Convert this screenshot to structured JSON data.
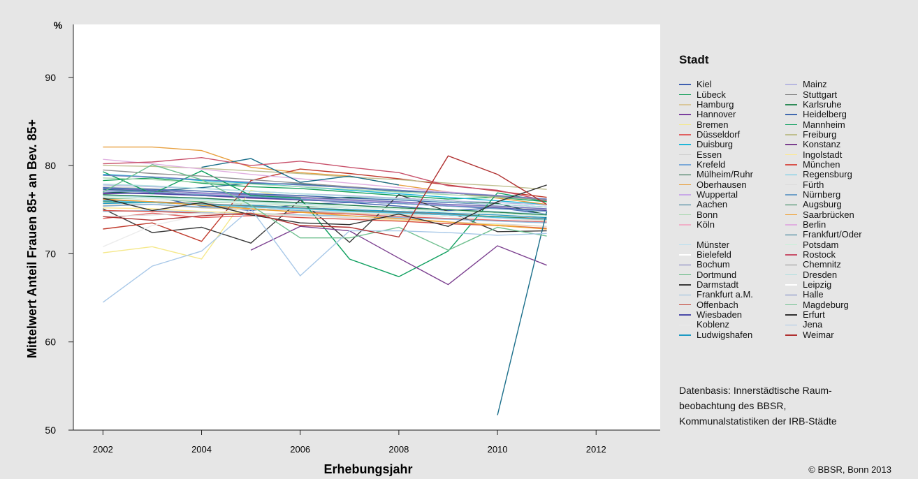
{
  "chart_data": {
    "type": "line",
    "title": "",
    "xlabel": "Erhebungsjahr",
    "ylabel": "Mittelwert Anteil Frauen 85+ an Bev. 85+",
    "y_unit": "%",
    "xlim": [
      2001.4,
      2013.3
    ],
    "ylim": [
      50,
      96
    ],
    "x_ticks": [
      2002,
      2004,
      2006,
      2008,
      2010,
      2012
    ],
    "y_ticks": [
      50,
      60,
      70,
      80,
      90
    ],
    "grid": false,
    "legend_title": "Stadt",
    "legend_position": "right",
    "x": [
      2002,
      2003,
      2004,
      2005,
      2006,
      2007,
      2008,
      2009,
      2010,
      2011
    ],
    "series": [
      {
        "name": "Kiel",
        "color": "#3f5fb0",
        "values": [
          76.2,
          76.5,
          75.4,
          74.9,
          75.6,
          75.8,
          75.4,
          74.9,
          75.2,
          74.5
        ]
      },
      {
        "name": "Lübeck",
        "color": "#16a05a",
        "values": [
          78.3,
          78.6,
          78.0,
          77.6,
          77.4,
          77.0,
          76.6,
          76.2,
          76.4,
          75.9
        ]
      },
      {
        "name": "Hamburg",
        "color": "#d9c79a",
        "values": [
          75.5,
          75.6,
          75.2,
          75.0,
          74.8,
          74.6,
          74.4,
          74.2,
          74.0,
          73.8
        ]
      },
      {
        "name": "Hannover",
        "color": "#7b3f9e",
        "values": [
          76.8,
          76.9,
          76.6,
          76.3,
          76.1,
          75.9,
          75.7,
          75.5,
          75.3,
          75.0
        ]
      },
      {
        "name": "Bremen",
        "color": "#f5e88a",
        "values": [
          70.1,
          70.8,
          69.4,
          77.2,
          76.2,
          76.0,
          75.8,
          75.5,
          75.2,
          74.9
        ]
      },
      {
        "name": "Düsseldorf",
        "color": "#e06060",
        "values": [
          74.0,
          74.6,
          74.1,
          74.3,
          74.7,
          74.5,
          74.2,
          74.0,
          73.8,
          73.6
        ]
      },
      {
        "name": "Duisburg",
        "color": "#1fb6d8",
        "values": [
          79.0,
          78.7,
          78.3,
          78.0,
          77.6,
          77.2,
          76.8,
          76.4,
          76.0,
          75.6
        ]
      },
      {
        "name": "Essen",
        "color": "#cfcfcf",
        "values": [
          77.6,
          77.4,
          77.1,
          76.8,
          76.5,
          76.2,
          75.9,
          75.6,
          75.3,
          75.0
        ]
      },
      {
        "name": "Krefeld",
        "color": "#7aa8d8",
        "values": [
          75.4,
          75.6,
          75.3,
          75.2,
          74.9,
          74.7,
          74.6,
          74.4,
          74.1,
          73.9
        ]
      },
      {
        "name": "Mülheim/Ruhr",
        "color": "#155d3a",
        "values": [
          76.9,
          77.1,
          76.7,
          76.5,
          76.2,
          76.4,
          76.3,
          76.0,
          75.7,
          74.4
        ]
      },
      {
        "name": "Oberhausen",
        "color": "#e8a040",
        "values": [
          82.1,
          82.1,
          81.7,
          79.8,
          79.2,
          78.8,
          77.8,
          77.0,
          76.3,
          75.6
        ]
      },
      {
        "name": "Wuppertal",
        "color": "#c9a9e8",
        "values": [
          77.2,
          77.0,
          76.8,
          76.6,
          76.3,
          76.0,
          75.8,
          75.5,
          75.2,
          74.9
        ]
      },
      {
        "name": "Aachen",
        "color": "#1f6e8c",
        "values": [
          77.3,
          77.1,
          77.5,
          78.0,
          77.9,
          77.5,
          77.1,
          76.9,
          76.5,
          76.2
        ]
      },
      {
        "name": "Bonn",
        "color": "#a8d8b0",
        "values": [
          78.6,
          78.4,
          78.1,
          77.9,
          77.6,
          77.3,
          77.0,
          76.7,
          76.4,
          76.1
        ]
      },
      {
        "name": "Köln",
        "color": "#f0b0c8",
        "values": [
          76.0,
          75.9,
          75.6,
          75.4,
          75.2,
          75.0,
          74.8,
          74.6,
          74.4,
          74.2
        ]
      },
      {
        "name": "Münster",
        "color": "#b8e0f0",
        "values": [
          76.6,
          76.4,
          76.2,
          75.9,
          75.7,
          75.5,
          75.2,
          75.0,
          74.8,
          74.5
        ]
      },
      {
        "name": "Bielefeld",
        "color": "#ffffff",
        "values": [
          75.8,
          75.7,
          75.5,
          75.3,
          75.0,
          74.8,
          74.6,
          74.4,
          74.2,
          73.9
        ]
      },
      {
        "name": "Bochum",
        "color": "#7070b8",
        "values": [
          77.4,
          77.2,
          76.9,
          76.7,
          76.4,
          76.1,
          75.9,
          75.6,
          75.4,
          75.1
        ]
      },
      {
        "name": "Dortmund",
        "color": "#60b880",
        "values": [
          76.3,
          76.2,
          75.9,
          75.7,
          75.4,
          75.2,
          75.0,
          74.7,
          74.5,
          74.2
        ]
      },
      {
        "name": "Darmstadt",
        "color": "#3a3a3a",
        "values": [
          75.1,
          72.4,
          73.0,
          71.2,
          76.1,
          71.3,
          76.7,
          74.8,
          72.5,
          72.6
        ]
      },
      {
        "name": "Frankfurt a.M.",
        "color": "#90bce0",
        "values": [
          74.8,
          74.9,
          74.7,
          74.6,
          74.4,
          74.3,
          74.1,
          73.9,
          73.7,
          73.5
        ]
      },
      {
        "name": "Offenbach",
        "color": "#c0392b",
        "values": [
          72.8,
          73.5,
          71.4,
          78.3,
          79.6,
          79.1,
          78.5,
          77.8,
          77.1,
          76.4
        ]
      },
      {
        "name": "Wiesbaden",
        "color": "#4a4aa8",
        "values": [
          76.9,
          76.8,
          76.6,
          76.4,
          76.1,
          75.9,
          75.7,
          75.4,
          75.2,
          74.9
        ]
      },
      {
        "name": "Koblenz",
        "color": "#ececec",
        "values": [
          70.8,
          73.2,
          74.4,
          75.2,
          75.0,
          74.7,
          74.5,
          74.2,
          74.0,
          73.7
        ]
      },
      {
        "name": "Ludwigshafen",
        "color": "#1d9ac4",
        "values": [
          75.7,
          75.8,
          75.6,
          75.5,
          75.2,
          75.0,
          74.8,
          74.6,
          74.4,
          74.1
        ]
      },
      {
        "name": "Mainz",
        "color": "#b8b8e0",
        "values": [
          77.8,
          77.6,
          77.4,
          77.1,
          76.8,
          76.6,
          76.3,
          76.0,
          75.8,
          75.5
        ]
      },
      {
        "name": "Stuttgart",
        "color": "#808080",
        "values": [
          76.1,
          75.9,
          75.7,
          75.4,
          75.2,
          74.9,
          74.7,
          74.5,
          74.2,
          74.0
        ]
      },
      {
        "name": "Karlsruhe",
        "color": "#2e8b57",
        "values": [
          75.9,
          75.8,
          75.6,
          75.3,
          75.1,
          74.9,
          74.6,
          74.4,
          74.2,
          73.9
        ]
      },
      {
        "name": "Heidelberg",
        "color": "#4169b0",
        "values": [
          77.5,
          77.3,
          77.1,
          76.8,
          76.6,
          76.3,
          76.1,
          75.8,
          75.6,
          75.3
        ]
      },
      {
        "name": "Mannheim",
        "color": "#10a060",
        "values": [
          79.3,
          76.8,
          79.4,
          76.6,
          76.3,
          69.4,
          67.4,
          70.3,
          76.9,
          75.9
        ]
      },
      {
        "name": "Freiburg",
        "color": "#bfbf8f",
        "values": [
          80.0,
          79.9,
          79.7,
          79.4,
          79.1,
          78.7,
          78.4,
          78.0,
          77.7,
          77.3
        ]
      },
      {
        "name": "Konstanz",
        "color": "#7b3f8f",
        "values": [
          null,
          null,
          null,
          70.4,
          73.1,
          72.6,
          69.5,
          66.5,
          70.9,
          68.7
        ]
      },
      {
        "name": "Ingolstadt",
        "color": "#fde890",
        "values": [
          75.2,
          75.1,
          74.8,
          74.6,
          74.3,
          74.1,
          73.8,
          73.6,
          73.3,
          73.1
        ]
      },
      {
        "name": "München",
        "color": "#d8524a",
        "values": [
          74.9,
          74.8,
          74.6,
          74.4,
          74.1,
          73.9,
          73.7,
          73.4,
          73.2,
          72.9
        ]
      },
      {
        "name": "Regensburg",
        "color": "#5ac8e8",
        "values": [
          76.0,
          75.8,
          75.6,
          75.3,
          75.1,
          74.8,
          74.6,
          74.4,
          74.1,
          73.9
        ]
      },
      {
        "name": "Fürth",
        "color": "#dcdcdc",
        "values": [
          74.2,
          74.4,
          74.6,
          74.5,
          74.3,
          74.1,
          73.9,
          73.6,
          73.4,
          73.1
        ]
      },
      {
        "name": "Nürnberg",
        "color": "#70a0c8",
        "values": [
          77.1,
          77.0,
          76.7,
          76.5,
          76.2,
          75.9,
          75.7,
          75.4,
          75.1,
          74.8
        ]
      },
      {
        "name": "Augsburg",
        "color": "#1f7a4a",
        "values": [
          76.7,
          76.5,
          76.3,
          76.0,
          75.8,
          75.5,
          75.2,
          75.0,
          74.7,
          74.4
        ]
      },
      {
        "name": "Saarbrücken",
        "color": "#f0a030",
        "values": [
          76.2,
          75.9,
          75.5,
          75.1,
          74.7,
          74.3,
          74.0,
          73.6,
          73.2,
          72.8
        ]
      },
      {
        "name": "Berlin",
        "color": "#e0b0e0",
        "values": [
          80.7,
          80.2,
          79.6,
          79.0,
          78.5,
          78.0,
          77.5,
          77.0,
          76.6,
          76.1
        ]
      },
      {
        "name": "Frankfurt/Oder",
        "color": "#1a6e8a",
        "values": [
          null,
          null,
          79.8,
          80.8,
          78.1,
          78.8,
          77.8,
          null,
          51.7,
          74.8
        ]
      },
      {
        "name": "Potsdam",
        "color": "#c8f0d8",
        "values": [
          76.5,
          76.3,
          76.1,
          75.8,
          75.6,
          75.3,
          75.1,
          74.8,
          74.6,
          74.3
        ]
      },
      {
        "name": "Rostock",
        "color": "#c8506a",
        "values": [
          80.2,
          80.4,
          80.9,
          80.0,
          80.5,
          79.8,
          79.2,
          77.7,
          77.2,
          76.0
        ]
      },
      {
        "name": "Chemnitz",
        "color": "#909090",
        "values": [
          79.5,
          79.1,
          78.8,
          78.4,
          78.0,
          77.6,
          77.2,
          76.9,
          76.5,
          76.1
        ]
      },
      {
        "name": "Dresden",
        "color": "#b0e0e0",
        "values": [
          77.9,
          77.7,
          77.4,
          77.1,
          76.8,
          76.5,
          76.2,
          75.9,
          75.6,
          75.3
        ]
      },
      {
        "name": "Leipzig",
        "color": "#ffffff",
        "values": [
          76.4,
          76.2,
          76.0,
          75.7,
          75.5,
          75.2,
          75.0,
          74.7,
          74.5,
          74.2
        ]
      },
      {
        "name": "Halle",
        "color": "#7080c0",
        "values": [
          78.9,
          78.7,
          78.4,
          78.1,
          77.8,
          77.5,
          77.2,
          76.9,
          76.6,
          76.2
        ]
      },
      {
        "name": "Magdeburg",
        "color": "#70c090",
        "values": [
          77.0,
          80.1,
          78.4,
          75.5,
          71.8,
          71.8,
          73.0,
          70.4,
          73.0,
          72.0
        ]
      },
      {
        "name": "Erfurt",
        "color": "#303030",
        "values": [
          76.3,
          74.9,
          75.8,
          74.4,
          73.5,
          73.3,
          74.5,
          73.1,
          75.9,
          77.8
        ]
      },
      {
        "name": "Jena",
        "color": "#a8c8e8",
        "values": [
          64.5,
          68.6,
          70.3,
          75.1,
          67.5,
          72.6,
          72.6,
          72.4,
          72.1,
          72.3
        ]
      },
      {
        "name": "Weimar",
        "color": "#b03030",
        "values": [
          74.2,
          73.8,
          74.3,
          74.6,
          73.2,
          73.0,
          71.9,
          81.1,
          79.0,
          75.6
        ]
      }
    ],
    "legend_columns": [
      [
        "Kiel",
        "Lübeck",
        "Hamburg",
        "Hannover",
        "Bremen",
        "Düsseldorf",
        "Duisburg",
        "Essen",
        "Krefeld",
        "Mülheim/Ruhr",
        "Oberhausen",
        "Wuppertal",
        "Aachen",
        "Bonn",
        "Köln",
        "",
        "Münster",
        "Bielefeld",
        "Bochum",
        "Dortmund",
        "Darmstadt",
        "Frankfurt a.M.",
        "Offenbach",
        "Wiesbaden",
        "Koblenz",
        "Ludwigshafen"
      ],
      [
        "Mainz",
        "Stuttgart",
        "Karlsruhe",
        "Heidelberg",
        "Mannheim",
        "Freiburg",
        "Konstanz",
        "Ingolstadt",
        "München",
        "Regensburg",
        "Fürth",
        "Nürnberg",
        "Augsburg",
        "Saarbrücken",
        "Berlin",
        "Frankfurt/Oder",
        "Potsdam",
        "Rostock",
        "Chemnitz",
        "Dresden",
        "Leipzig",
        "Halle",
        "Magdeburg",
        "Erfurt",
        "Jena",
        "Weimar"
      ]
    ]
  },
  "source_note": "Datenbasis: Innerstädtische Raum-beobachtung des BBSR, Kommunalstatistiken der IRB-Städte",
  "source_lines": [
    "Datenbasis: Innerstädtische Raum-",
    "beobachtung des BBSR,",
    "Kommunalstatistiken der IRB-Städte"
  ],
  "copyright": "© BBSR, Bonn 2013"
}
